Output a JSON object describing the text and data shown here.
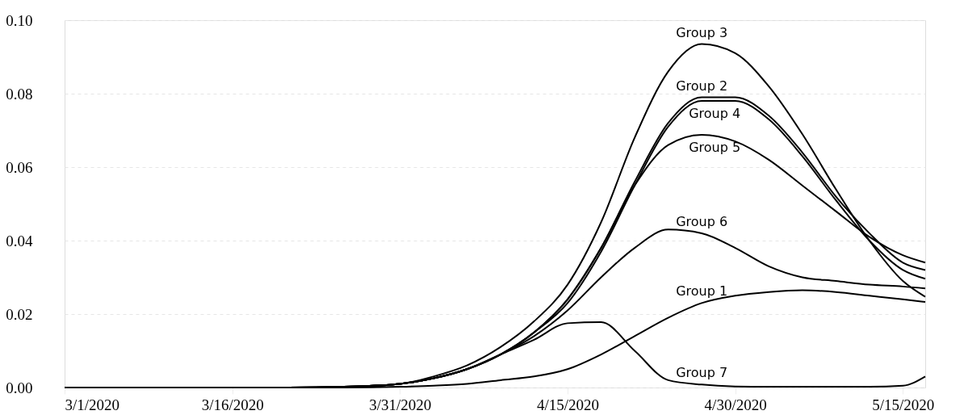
{
  "chart_data": {
    "type": "line",
    "x": [
      "2020-03-01",
      "2020-03-21",
      "2020-03-26",
      "2020-03-31",
      "2020-04-03",
      "2020-04-06",
      "2020-04-09",
      "2020-04-12",
      "2020-04-15",
      "2020-04-18",
      "2020-04-21",
      "2020-04-24",
      "2020-04-27",
      "2020-04-30",
      "2020-05-03",
      "2020-05-06",
      "2020-05-09",
      "2020-05-12",
      "2020-05-15",
      "2020-05-17"
    ],
    "series": [
      {
        "name": "Group 1",
        "color": "#000000",
        "values": [
          0,
          0,
          0,
          0.0002,
          0.0005,
          0.001,
          0.002,
          0.003,
          0.005,
          0.009,
          0.014,
          0.019,
          0.023,
          0.025,
          0.026,
          0.0265,
          0.026,
          0.025,
          0.024,
          0.0233
        ]
      },
      {
        "name": "Group 2",
        "color": "#000000",
        "values": [
          0,
          0,
          0.0002,
          0.001,
          0.0025,
          0.005,
          0.009,
          0.015,
          0.024,
          0.038,
          0.056,
          0.072,
          0.079,
          0.079,
          0.074,
          0.064,
          0.052,
          0.042,
          0.034,
          0.032
        ]
      },
      {
        "name": "Group 3",
        "color": "#000000",
        "values": [
          0,
          0,
          0.0002,
          0.001,
          0.003,
          0.006,
          0.011,
          0.018,
          0.028,
          0.045,
          0.068,
          0.086,
          0.0935,
          0.091,
          0.082,
          0.069,
          0.054,
          0.04,
          0.029,
          0.0247
        ]
      },
      {
        "name": "Group 4",
        "color": "#000000",
        "values": [
          0,
          0,
          0.0002,
          0.001,
          0.0025,
          0.005,
          0.009,
          0.015,
          0.023,
          0.037,
          0.055,
          0.071,
          0.078,
          0.078,
          0.073,
          0.063,
          0.051,
          0.04,
          0.032,
          0.0296
        ]
      },
      {
        "name": "Group 5",
        "color": "#000000",
        "values": [
          0,
          0,
          0.0002,
          0.001,
          0.0025,
          0.005,
          0.009,
          0.015,
          0.024,
          0.038,
          0.055,
          0.066,
          0.0688,
          0.067,
          0.062,
          0.055,
          0.048,
          0.041,
          0.036,
          0.034
        ]
      },
      {
        "name": "Group 6",
        "color": "#000000",
        "values": [
          0,
          0,
          0.0002,
          0.001,
          0.0025,
          0.005,
          0.009,
          0.014,
          0.021,
          0.03,
          0.038,
          0.043,
          0.042,
          0.038,
          0.033,
          0.03,
          0.029,
          0.028,
          0.0275,
          0.027
        ]
      },
      {
        "name": "Group 7",
        "color": "#000000",
        "values": [
          0,
          0,
          0.0002,
          0.001,
          0.0025,
          0.005,
          0.009,
          0.013,
          0.0175,
          0.0178,
          0.01,
          0.002,
          0.0008,
          0.0003,
          0.0002,
          0.0002,
          0.0002,
          0.0002,
          0.0005,
          0.003
        ]
      }
    ],
    "xlim": [
      "2020-03-01",
      "2020-05-17"
    ],
    "xticks": [
      {
        "value": "2020-03-01",
        "label": "3/1/2020"
      },
      {
        "value": "2020-03-16",
        "label": "3/16/2020"
      },
      {
        "value": "2020-03-31",
        "label": "3/31/2020"
      },
      {
        "value": "2020-04-15",
        "label": "4/15/2020"
      },
      {
        "value": "2020-04-30",
        "label": "4/30/2020"
      },
      {
        "value": "2020-05-15",
        "label": "5/15/2020"
      }
    ],
    "ylim": [
      0,
      0.1
    ],
    "yticks": [
      {
        "value": 0,
        "label": "0.00"
      },
      {
        "value": 0.02,
        "label": "0.02"
      },
      {
        "value": 0.04,
        "label": "0.04"
      },
      {
        "value": 0.06,
        "label": "0.06"
      },
      {
        "value": 0.08,
        "label": "0.08"
      },
      {
        "value": 0.1,
        "label": "0.10"
      }
    ],
    "grid": "y",
    "legend": false,
    "marker": "none",
    "line_style": "solid"
  }
}
